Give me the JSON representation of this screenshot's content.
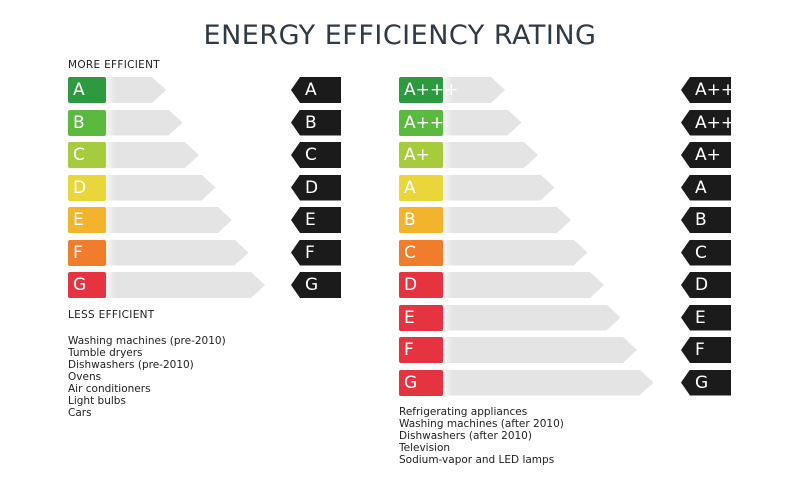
{
  "title": "ENERGY EFFICIENCY RATING",
  "left": {
    "more_label": "MORE EFFICIENT",
    "less_label": "LESS EFFICIENT",
    "bars": [
      {
        "label": "A",
        "color": "#2e9a3f"
      },
      {
        "label": "B",
        "color": "#5cb940"
      },
      {
        "label": "C",
        "color": "#a6cb3c"
      },
      {
        "label": "D",
        "color": "#e9d63a"
      },
      {
        "label": "E",
        "color": "#f2b32d"
      },
      {
        "label": "F",
        "color": "#ef7d2b"
      },
      {
        "label": "G",
        "color": "#e53340"
      }
    ],
    "tags": [
      "A",
      "B",
      "C",
      "D",
      "E",
      "F",
      "G"
    ],
    "appliances": [
      "Washing machines (pre-2010)",
      "Tumble dryers",
      "Dishwashers (pre-2010)",
      "Ovens",
      "Air conditioners",
      "Light bulbs",
      "Cars"
    ]
  },
  "right": {
    "bars": [
      {
        "label": "A+++",
        "color": "#2e9a3f"
      },
      {
        "label": "A++",
        "color": "#5cb940"
      },
      {
        "label": "A+",
        "color": "#a6cb3c"
      },
      {
        "label": "A",
        "color": "#e9d63a"
      },
      {
        "label": "B",
        "color": "#f2b32d"
      },
      {
        "label": "C",
        "color": "#ef7d2b"
      },
      {
        "label": "D",
        "color": "#e53340"
      },
      {
        "label": "E",
        "color": "#e53340"
      },
      {
        "label": "F",
        "color": "#e53340"
      },
      {
        "label": "G",
        "color": "#e53340"
      }
    ],
    "tags": [
      "A+++",
      "A++",
      "A+",
      "A",
      "B",
      "C",
      "D",
      "E",
      "F",
      "G"
    ],
    "appliances": [
      "Refrigerating appliances",
      "Washing machines (after 2010)",
      "Dishwashers (after 2010)",
      "Television",
      "Sodium-vapor and LED lamps"
    ]
  }
}
